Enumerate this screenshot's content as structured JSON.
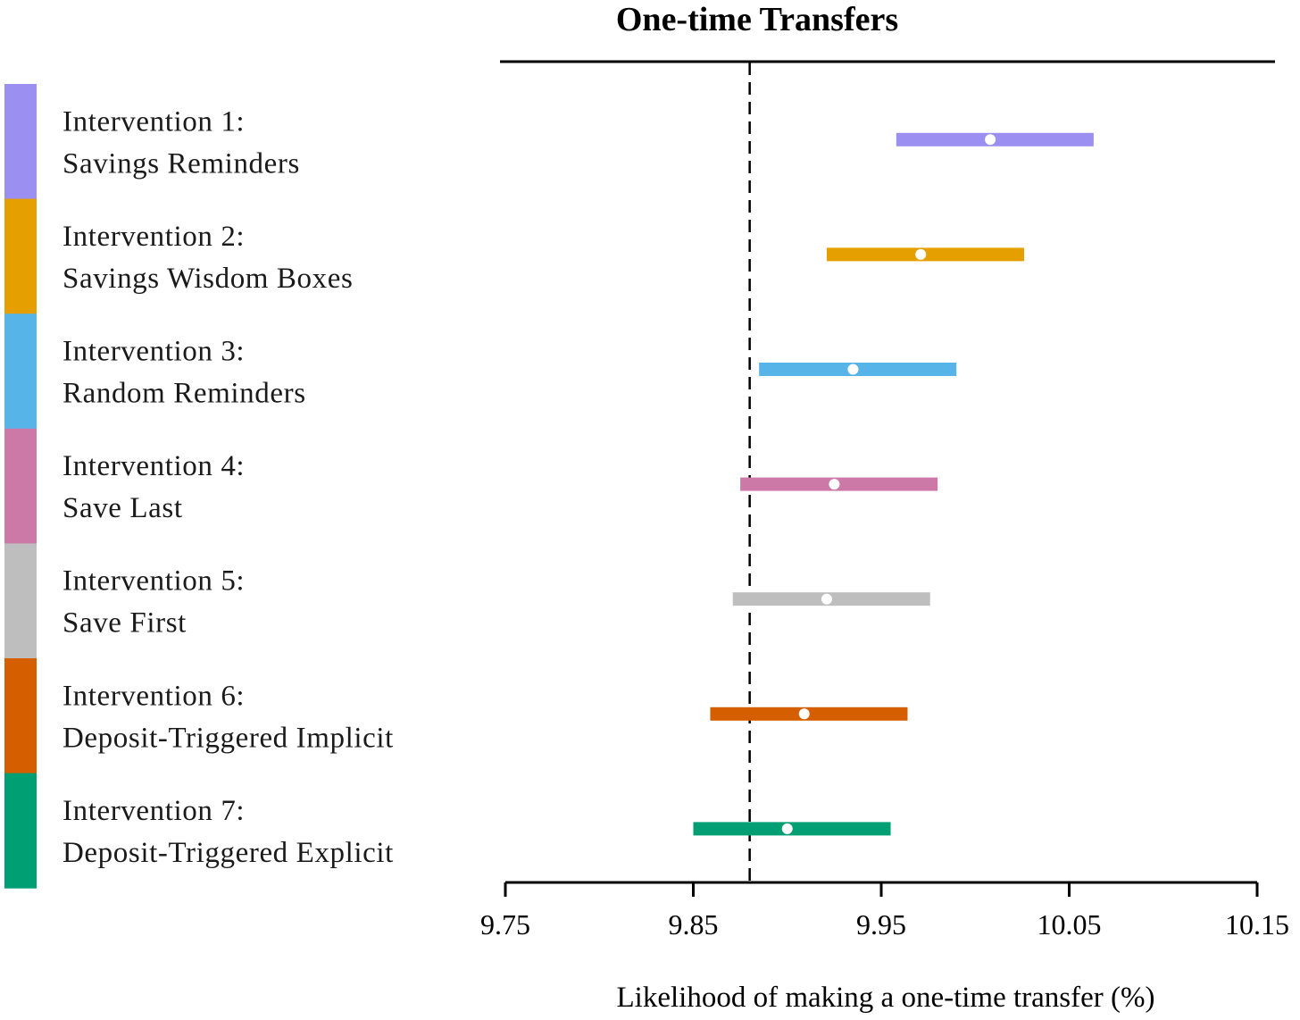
{
  "chart_data": {
    "type": "forest",
    "title": "One-time Transfers",
    "xlabel": "Likelihood of making a one-time transfer (%)",
    "ylabel": "",
    "xlim": [
      9.75,
      10.15
    ],
    "xticks": [
      "9.75",
      "9.85",
      "9.95",
      "10.05",
      "10.15"
    ],
    "reference_line": 9.88,
    "series": [
      {
        "line1": "Intervention 1:",
        "line2": "Savings Reminders",
        "estimate": 10.008,
        "lower": 9.958,
        "upper": 10.063,
        "color": "#9B8FF2"
      },
      {
        "line1": "Intervention 2:",
        "line2": "Savings Wisdom Boxes",
        "estimate": 9.971,
        "lower": 9.921,
        "upper": 10.026,
        "color": "#E69F00"
      },
      {
        "line1": "Intervention 3:",
        "line2": "Random Reminders",
        "estimate": 9.935,
        "lower": 9.885,
        "upper": 9.99,
        "color": "#56B4E9"
      },
      {
        "line1": "Intervention 4:",
        "line2": "Save Last",
        "estimate": 9.925,
        "lower": 9.875,
        "upper": 9.98,
        "color": "#CC79A7"
      },
      {
        "line1": "Intervention 5:",
        "line2": "Save First",
        "estimate": 9.921,
        "lower": 9.871,
        "upper": 9.976,
        "color": "#BEBEBE"
      },
      {
        "line1": "Intervention 6:",
        "line2": "Deposit-Triggered Implicit",
        "estimate": 9.909,
        "lower": 9.859,
        "upper": 9.964,
        "color": "#D55E00"
      },
      {
        "line1": "Intervention 7:",
        "line2": "Deposit-Triggered Explicit",
        "estimate": 9.9,
        "lower": 9.85,
        "upper": 9.955,
        "color": "#009E73"
      }
    ]
  }
}
